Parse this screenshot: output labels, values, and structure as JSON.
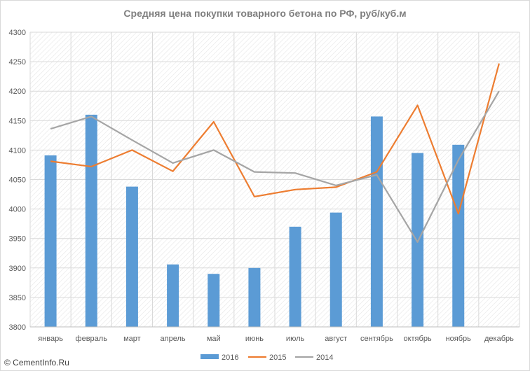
{
  "watermark": "© CementInfo.Ru",
  "chart_data": {
    "type": "bar",
    "title": "Средняя цена покупки товарного бетона по РФ, руб/куб.м",
    "xlabel": "",
    "ylabel": "",
    "ylim": [
      3800,
      4300
    ],
    "ytick_step": 50,
    "grid": true,
    "legend_position": "bottom",
    "categories": [
      "январь",
      "февраль",
      "март",
      "апрель",
      "май",
      "июнь",
      "июль",
      "август",
      "сентябрь",
      "октябрь",
      "ноябрь",
      "декабрь"
    ],
    "series": [
      {
        "name": "2016",
        "type": "bar",
        "color": "#5b9bd5",
        "values": [
          4091,
          4160,
          4038,
          3906,
          3890,
          3900,
          3970,
          3994,
          4157,
          4095,
          4109,
          null
        ]
      },
      {
        "name": "2015",
        "type": "line",
        "color": "#ed7d31",
        "values": [
          4081,
          4072,
          4100,
          4064,
          4148,
          4021,
          4033,
          4037,
          4063,
          4176,
          3992,
          4247
        ]
      },
      {
        "name": "2014",
        "type": "line",
        "color": "#a5a5a5",
        "values": [
          4136,
          4157,
          4117,
          4078,
          4100,
          4063,
          4061,
          4040,
          4058,
          3944,
          4083,
          4200
        ]
      }
    ]
  }
}
